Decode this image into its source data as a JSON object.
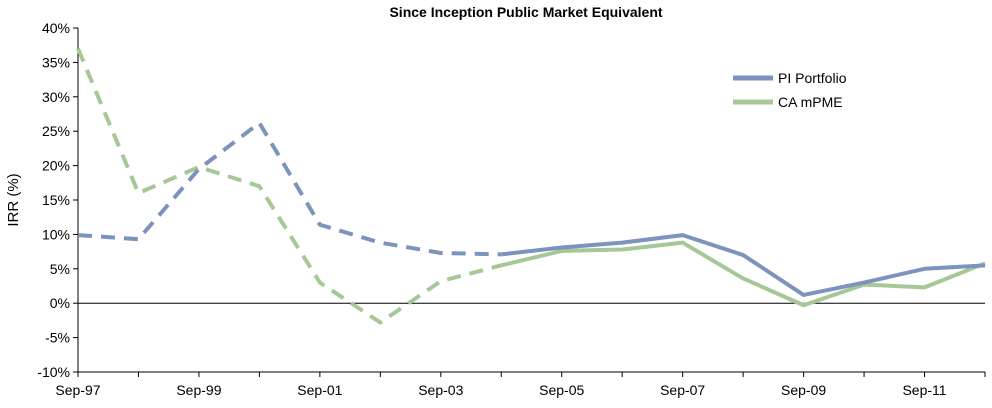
{
  "chart_data": {
    "type": "line",
    "title": "Since Inception Public Market Equivalent",
    "xlabel": "",
    "ylabel": "IRR (%)",
    "ylim": [
      -10,
      40
    ],
    "y_ticks": [
      "-10%",
      "-5%",
      "0%",
      "5%",
      "10%",
      "15%",
      "20%",
      "25%",
      "30%",
      "35%",
      "40%"
    ],
    "y_tick_values": [
      -10,
      -5,
      0,
      5,
      10,
      15,
      20,
      25,
      30,
      35,
      40
    ],
    "x": [
      "Sep-97",
      "Sep-98",
      "Sep-99",
      "Sep-00",
      "Sep-01",
      "Sep-02",
      "Sep-03",
      "Sep-04",
      "Sep-05",
      "Sep-06",
      "Sep-07",
      "Sep-08",
      "Sep-09",
      "Sep-10",
      "Sep-11",
      "Sep-12"
    ],
    "x_ticks": [
      "Sep-97",
      "Sep-99",
      "Sep-01",
      "Sep-03",
      "Sep-05",
      "Sep-07",
      "Sep-09",
      "Sep-11"
    ],
    "dashed_through": "Sep-04",
    "grid": false,
    "legend_position": "top-right",
    "series": [
      {
        "name": "PI Portfolio",
        "color": "#7b93bd",
        "values": [
          9.9,
          9.3,
          19.5,
          26.2,
          11.4,
          8.8,
          7.3,
          7.1,
          8.1,
          8.8,
          9.9,
          7.0,
          1.2,
          3.0,
          5.0,
          5.5
        ]
      },
      {
        "name": "CA mPME",
        "color": "#a6c796",
        "values": [
          37.0,
          16.0,
          19.8,
          17.0,
          3.0,
          -2.8,
          3.2,
          5.5,
          7.6,
          7.8,
          8.8,
          3.6,
          -0.3,
          2.7,
          2.3,
          5.8
        ]
      }
    ]
  }
}
